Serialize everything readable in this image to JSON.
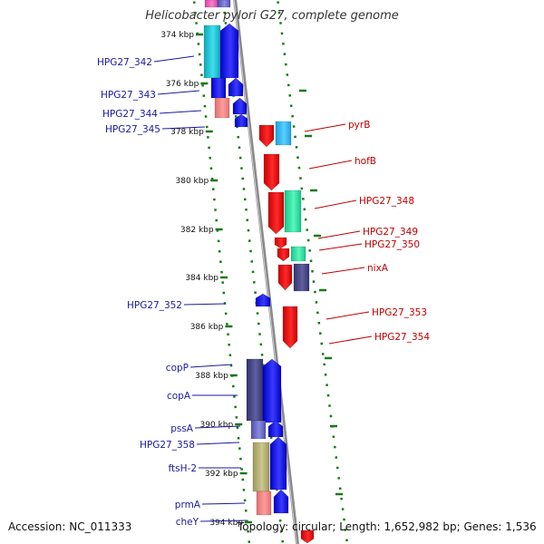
{
  "title": "Helicobacter pylori G27, complete genome",
  "footer": {
    "accession": "Accession: NC_011333",
    "summary": "Topology: circular; Length: 1,652,982 bp; Genes: 1,536"
  },
  "colors": {
    "left_labels": "#1a1aa0",
    "right_labels": "#c00000",
    "ruler_ticks": "#1a7a1a",
    "backbone": "#8a8a8a"
  },
  "ruler": [
    "374 kbp",
    "376 kbp",
    "378 kbp",
    "380 kbp",
    "382 kbp",
    "384 kbp",
    "386 kbp",
    "388 kbp",
    "390 kbp",
    "392 kbp",
    "394 kbp"
  ],
  "left_genes": [
    "HPG27_342",
    "HPG27_343",
    "HPG27_344",
    "HPG27_345",
    "HPG27_352",
    "copP",
    "copA",
    "pssA",
    "HPG27_358",
    "ftsH-2",
    "prmA",
    "cheY"
  ],
  "right_genes": [
    "pyrB",
    "hofB",
    "HPG27_348",
    "HPG27_349",
    "HPG27_350",
    "nixA",
    "HPG27_353",
    "HPG27_354"
  ]
}
